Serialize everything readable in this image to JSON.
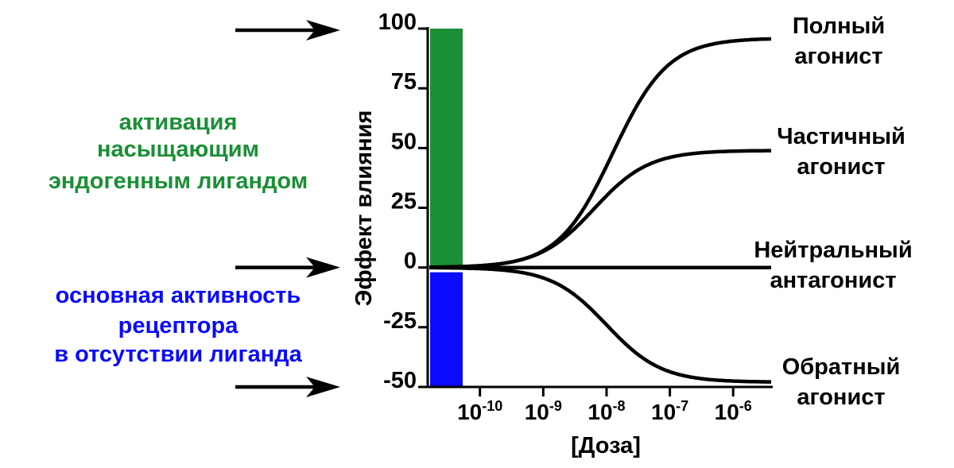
{
  "chart_data": {
    "type": "line",
    "ylabel": "Эффект влияния",
    "xlabel": "[Доза]",
    "ylim": [
      -50,
      100
    ],
    "y_ticks": [
      "100",
      "75",
      "50",
      "25",
      "0",
      "-25",
      "-50"
    ],
    "x_ticks": [
      {
        "base": "10",
        "exp": "-10"
      },
      {
        "base": "10",
        "exp": "-9"
      },
      {
        "base": "10",
        "exp": "-8"
      },
      {
        "base": "10",
        "exp": "-7"
      },
      {
        "base": "10",
        "exp": "-6"
      }
    ],
    "log_dose_range": [
      -10.8,
      -5.4
    ],
    "series": [
      {
        "name": "Полный агонист",
        "label_lines": [
          "Полный",
          "агонист"
        ],
        "top": 96,
        "ec50_log": -7.9
      },
      {
        "name": "Частичный агонист",
        "label_lines": [
          "Частичный",
          "агонист"
        ],
        "top": 49,
        "ec50_log": -8.2
      },
      {
        "name": "Нейтральный антагонист",
        "label_lines": [
          "Нейтральный",
          "антагонист"
        ],
        "top": 0,
        "ec50_log": -8.0
      },
      {
        "name": "Обратный агонист",
        "label_lines": [
          "Обратный",
          "агонист"
        ],
        "top": -48,
        "ec50_log": -8.0
      }
    ],
    "bars": [
      {
        "from": 0,
        "to": 100,
        "color": "#1a8f35"
      },
      {
        "from": 0,
        "to": -50,
        "color": "#0a0aff"
      }
    ]
  },
  "annotations": {
    "saturated": {
      "lines": [
        "активация",
        "насыщающим",
        "эндогенным лигандом"
      ],
      "color": "#1a8f35",
      "points_to": 100
    },
    "basal": {
      "lines": [
        "основная активность",
        "рецептора",
        "в отсутствии лиганда"
      ],
      "color": "#0a0aff",
      "points_to": 0
    },
    "inverse_arrow_points_to": -50
  }
}
